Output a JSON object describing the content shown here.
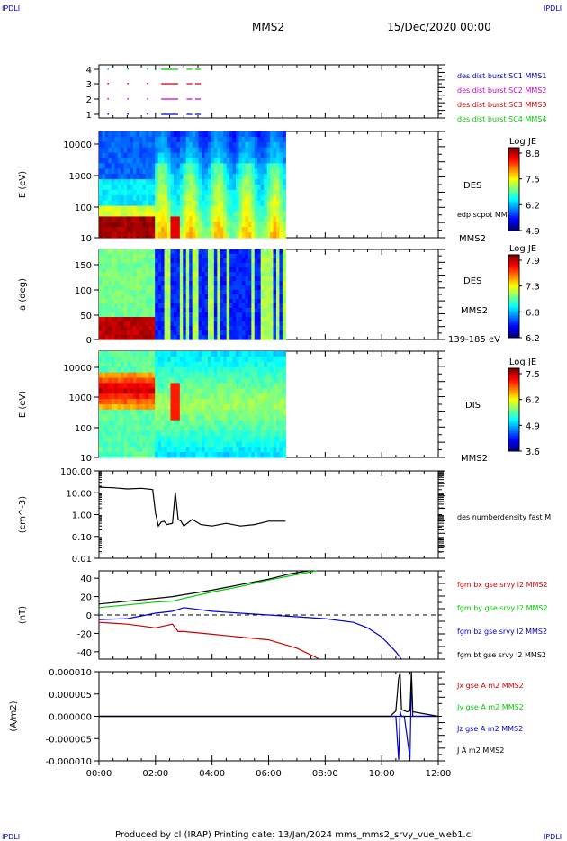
{
  "corner_labels": {
    "top_left": "IPDLI",
    "top_right": "IPDLI",
    "bottom_left": "IPDLI",
    "bottom_right": "IPDLI"
  },
  "header": {
    "spacecraft": "MMS2",
    "date": "15/Dec/2020 00:00"
  },
  "footer": "Produced by cl (IRAP)   Printing date: 13/Jan/2024   mms_mms2_srvy_vue_web1.cl",
  "colors": {
    "frame": "#000000",
    "blue": "#0000cc",
    "green": "#00cc00",
    "red": "#cc0000",
    "magenta": "#cc00cc",
    "black": "#000000"
  },
  "x_axis": {
    "ticks": [
      "00:00",
      "02:00",
      "04:00",
      "06:00",
      "08:00",
      "10:00",
      "12:00"
    ],
    "range_hours": [
      0,
      12
    ]
  },
  "chart_data": [
    {
      "type": "scatter",
      "panel": "burst-availability",
      "yticks": [
        "4",
        "3",
        "2",
        "1"
      ],
      "labels": [
        {
          "text": "des dist burst SC1 MMS1",
          "color": "#0000cc"
        },
        {
          "text": "des dist burst SC2 MMS2",
          "color": "#cc00cc"
        },
        {
          "text": "des dist burst SC3 MMS3",
          "color": "#cc0000"
        },
        {
          "text": "des dist burst SC4 MMS4",
          "color": "#00cc00"
        }
      ]
    },
    {
      "type": "heatmap",
      "panel": "des-energy",
      "ylabel": "E (eV)",
      "yticks": [
        "10000",
        "1000",
        "100",
        "10"
      ],
      "ylim": [
        10,
        20000
      ],
      "species": "DES",
      "spacecraft": "MMS2",
      "overlay_label": "edp scpot MMS2",
      "colorbar": {
        "title": "Log JE",
        "ticks": [
          "8.8",
          "7.5",
          "6.2",
          "4.9"
        ],
        "range": [
          4.9,
          8.8
        ]
      },
      "data_end_hours": 6.6
    },
    {
      "type": "heatmap",
      "panel": "des-pitch",
      "ylabel": "a (deg)",
      "yticks": [
        "150",
        "100",
        "50",
        "0"
      ],
      "ylim": [
        0,
        180
      ],
      "species": "DES",
      "spacecraft": "MMS2",
      "energy_range": "139-185 eV",
      "colorbar": {
        "title": "Log JE",
        "ticks": [
          "7.9",
          "7.3",
          "6.8",
          "6.2"
        ],
        "range": [
          6.2,
          7.9
        ]
      },
      "data_end_hours": 6.6
    },
    {
      "type": "heatmap",
      "panel": "dis-energy",
      "ylabel": "E (eV)",
      "yticks": [
        "10000",
        "1000",
        "100",
        "10"
      ],
      "ylim": [
        10,
        20000
      ],
      "species": "DIS",
      "spacecraft": "MMS2",
      "colorbar": {
        "title": "Log JE",
        "ticks": [
          "7.5",
          "6.2",
          "4.9",
          "3.6"
        ],
        "range": [
          3.6,
          7.5
        ]
      },
      "data_end_hours": 6.6
    },
    {
      "type": "line",
      "panel": "density",
      "ylabel": "(cm^-3)",
      "yticks": [
        "100.00",
        "10.00",
        "1.00",
        "0.10",
        "0.01"
      ],
      "ylim": [
        0.01,
        100
      ],
      "series": [
        {
          "name": "des numberdensity fast M",
          "color": "#000000",
          "x": [
            0.0,
            0.5,
            1.0,
            1.5,
            1.9,
            2.0,
            2.1,
            2.2,
            2.3,
            2.4,
            2.6,
            2.7,
            2.8,
            2.9,
            3.0,
            3.3,
            3.6,
            4.0,
            4.5,
            5.0,
            5.5,
            6.0,
            6.6
          ],
          "y": [
            18,
            17,
            15,
            16,
            14,
            1.2,
            0.3,
            0.45,
            0.5,
            0.35,
            0.4,
            10.5,
            0.6,
            0.5,
            0.3,
            0.6,
            0.35,
            0.3,
            0.4,
            0.3,
            0.35,
            0.5,
            0.5
          ]
        }
      ]
    },
    {
      "type": "line",
      "panel": "magnetic-field",
      "ylabel": "(nT)",
      "yticks": [
        "40",
        "20",
        "0",
        "-20",
        "-40"
      ],
      "ylim": [
        -48,
        48
      ],
      "series": [
        {
          "name": "fgm bx gse srvy l2 MMS2",
          "color": "#cc0000",
          "x": [
            0,
            1,
            2,
            2.6,
            2.8,
            3,
            4,
            5,
            6,
            7,
            7.8
          ],
          "y": [
            -8,
            -10,
            -14,
            -10,
            -18,
            -18,
            -21,
            -24,
            -27,
            -36,
            -48
          ]
        },
        {
          "name": "fgm by gse srvy l2 MMS2",
          "color": "#00cc00",
          "x": [
            0,
            1,
            2,
            2.6,
            3,
            4,
            5,
            6,
            7,
            7.7
          ],
          "y": [
            8,
            11,
            14,
            15,
            18,
            25,
            31,
            38,
            44,
            48
          ]
        },
        {
          "name": "fgm bz gse srvy l2 MMS2",
          "color": "#0000cc",
          "x": [
            0,
            1,
            2,
            2.6,
            3,
            4,
            5,
            6,
            7,
            8,
            9,
            9.5,
            10,
            10.5,
            10.7
          ],
          "y": [
            -5,
            -4,
            2,
            4,
            8,
            4,
            2,
            0,
            -2,
            -4,
            -8,
            -14,
            -24,
            -40,
            -48
          ]
        },
        {
          "name": "fgm bt gse srvy l2 MMS2",
          "color": "#000000",
          "x": [
            0,
            1,
            2,
            2.6,
            3,
            4,
            5,
            6,
            6.8,
            7.4
          ],
          "y": [
            12,
            15,
            18,
            20,
            22,
            27,
            33,
            39,
            45,
            48
          ]
        }
      ]
    },
    {
      "type": "line",
      "panel": "current-density",
      "ylabel": "(A/m2)",
      "yticks": [
        "0.000010",
        "0.000005",
        "0.000000",
        "-0.000005",
        "-0.000010"
      ],
      "ylim": [
        -1e-05,
        1e-05
      ],
      "series": [
        {
          "name": "Jx gse A m2 MMS2",
          "color": "#cc0000"
        },
        {
          "name": "Jy gse A m2 MMS2",
          "color": "#00cc00"
        },
        {
          "name": "Jz gse A m2 MMS2",
          "color": "#0000cc",
          "x": [
            0,
            10.5,
            10.6,
            10.65,
            10.7,
            10.8,
            11.0,
            11.05,
            11.1,
            12
          ],
          "y": [
            0,
            0,
            -9.8e-06,
            1.1e-06,
            0,
            0,
            -9.5e-06,
            9e-06,
            0,
            0
          ]
        },
        {
          "name": "J A m2 MMS2",
          "color": "#000000",
          "x": [
            0,
            10.3,
            10.5,
            10.6,
            10.65,
            10.7,
            10.9,
            11.0,
            11.05,
            11.1,
            12
          ],
          "y": [
            0,
            0,
            1.2e-06,
            8.5e-06,
            9.8e-06,
            1.5e-06,
            1e-06,
            1.2e-06,
            1e-05,
            1e-06,
            0
          ]
        }
      ]
    }
  ]
}
